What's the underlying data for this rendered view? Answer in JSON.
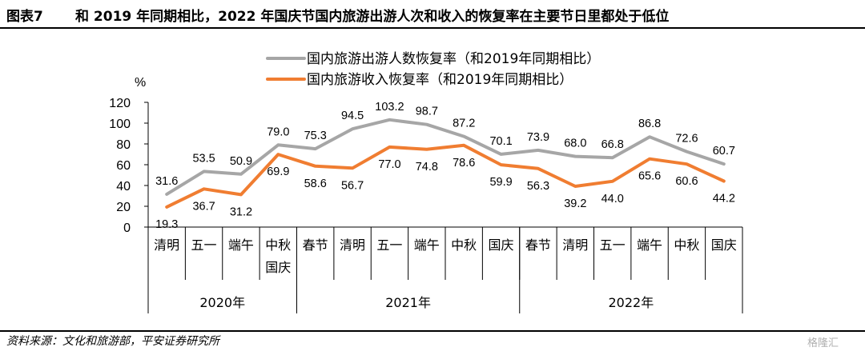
{
  "title": {
    "label": "图表7",
    "text": "和 2019 年同期相比，2022 年国庆节国内旅游出游人次和收入的恢复率在主要节日里都处于低位"
  },
  "source": "资料来源：文化和旅游部，平安证券研究所",
  "watermark": "格隆汇",
  "colors": {
    "series_trips": "#a6a6a6",
    "series_revenue": "#f07d31",
    "axis": "#000000",
    "text": "#000000"
  },
  "chart_data": {
    "type": "line",
    "title": "",
    "ylabel": "%",
    "xlabel": "",
    "ylim": [
      0,
      120
    ],
    "yticks": [
      0,
      20,
      40,
      60,
      80,
      100,
      120
    ],
    "grid": false,
    "legend_position": "top-center",
    "categories": [
      [
        "清明"
      ],
      [
        "五一"
      ],
      [
        "端午"
      ],
      [
        "中秋",
        "国庆"
      ],
      [
        "春节"
      ],
      [
        "清明"
      ],
      [
        "五一"
      ],
      [
        "端午"
      ],
      [
        "中秋"
      ],
      [
        "国庆"
      ],
      [
        "春节"
      ],
      [
        "清明"
      ],
      [
        "五一"
      ],
      [
        "端午"
      ],
      [
        "中秋"
      ],
      [
        "国庆"
      ]
    ],
    "groups": [
      {
        "label": "2020年",
        "start": 0,
        "end": 3
      },
      {
        "label": "2021年",
        "start": 4,
        "end": 9
      },
      {
        "label": "2022年",
        "start": 10,
        "end": 15
      }
    ],
    "series": [
      {
        "name": "国内旅游出游人数恢复率（和2019年同期相比）",
        "color_key": "series_trips",
        "label_position": "above",
        "values": [
          31.6,
          53.5,
          50.9,
          79.0,
          75.3,
          94.5,
          103.2,
          98.7,
          87.2,
          70.1,
          73.9,
          68.0,
          66.8,
          86.8,
          72.6,
          60.7
        ],
        "labels": [
          "31.6",
          "53.5",
          "50.9",
          "79.0",
          "75.3",
          "94.5",
          "103.2",
          "98.7",
          "87.2",
          "70.1",
          "73.9",
          "68.0",
          "66.8",
          "86.8",
          "72.6",
          "60.7"
        ]
      },
      {
        "name": "国内旅游收入恢复率（和2019年同期相比）",
        "color_key": "series_revenue",
        "label_position": "below",
        "values": [
          19.3,
          36.7,
          31.2,
          69.9,
          58.6,
          56.7,
          77.0,
          74.8,
          78.6,
          59.9,
          56.3,
          39.2,
          44.0,
          65.6,
          60.6,
          44.2
        ],
        "labels": [
          "19.3",
          "36.7",
          "31.2",
          "69.9",
          "58.6",
          "56.7",
          "77.0",
          "74.8",
          "78.6",
          "59.9",
          "56.3",
          "39.2",
          "44.0",
          "65.6",
          "60.6",
          "44.2"
        ]
      }
    ]
  }
}
